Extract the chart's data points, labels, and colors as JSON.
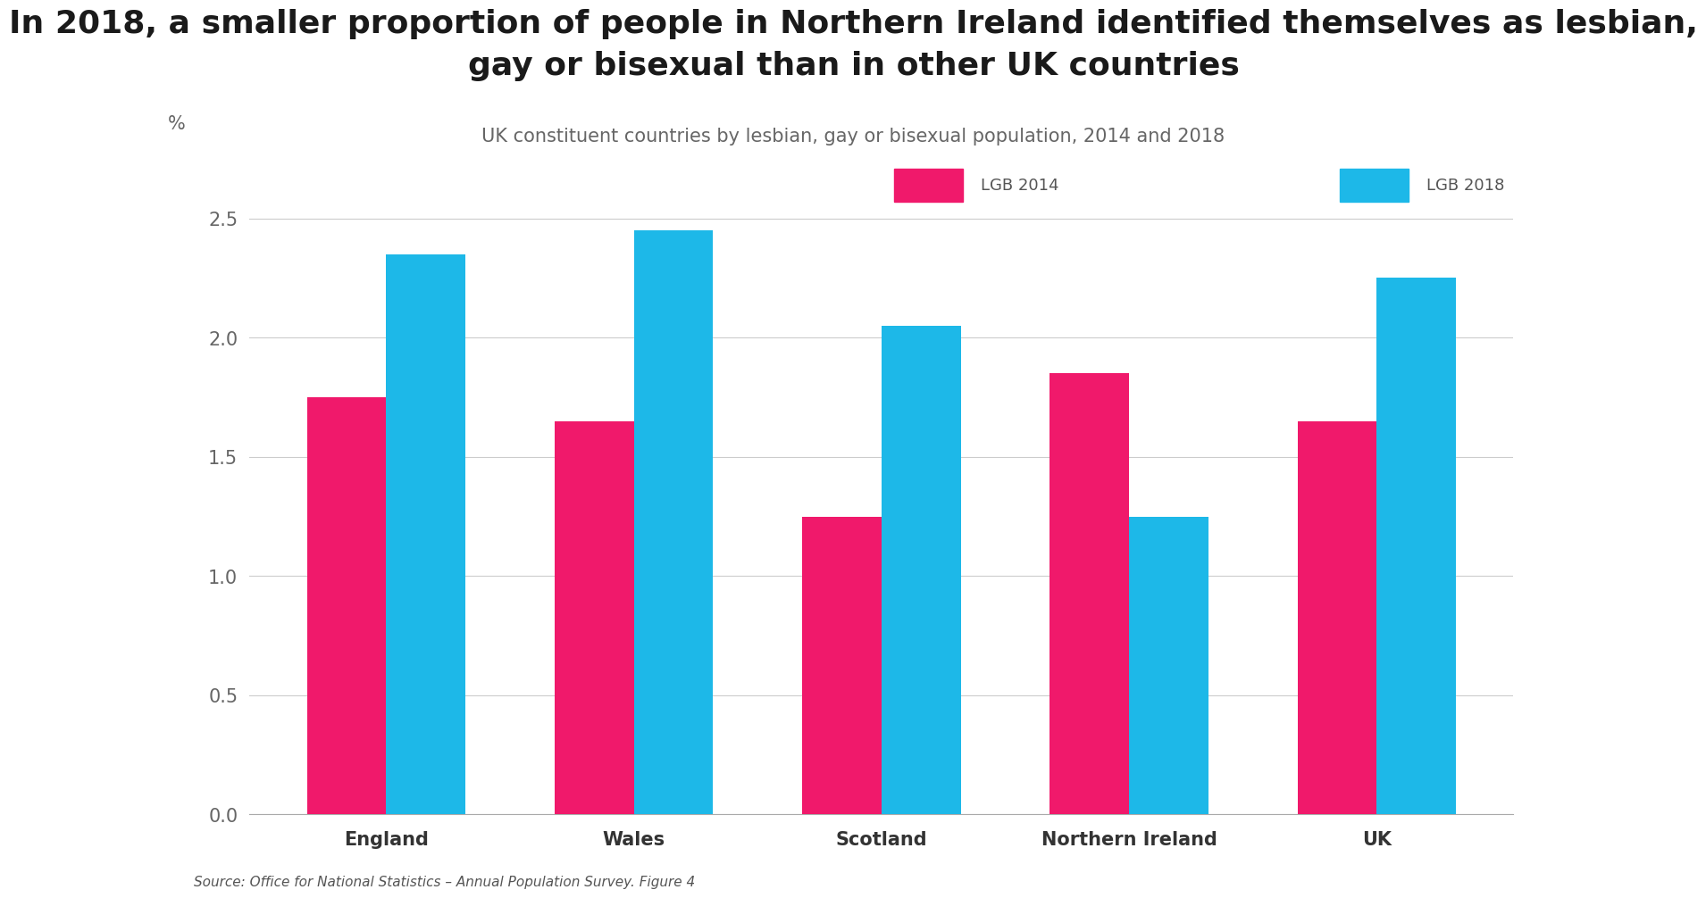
{
  "title": "In 2018, a smaller proportion of people in Northern Ireland identified themselves as lesbian,\ngay or bisexual than in other UK countries",
  "subtitle": "UK constituent countries by lesbian, gay or bisexual population, 2014 and 2018",
  "ylabel": "%",
  "source": "Source: Office for National Statistics – Annual Population Survey. Figure 4",
  "categories": [
    "England",
    "Wales",
    "Scotland",
    "Northern Ireland",
    "UK"
  ],
  "lgb2014": [
    1.75,
    1.65,
    1.25,
    1.85,
    1.65
  ],
  "lgb2018": [
    2.35,
    2.45,
    2.05,
    1.25,
    2.25
  ],
  "color_2014": "#F0196B",
  "color_2018": "#1DB8E8",
  "ylim": [
    0,
    2.75
  ],
  "yticks": [
    0.0,
    0.5,
    1.0,
    1.5,
    2.0,
    2.5
  ],
  "legend_label_2014": "LGB 2014",
  "legend_label_2018": "LGB 2018",
  "bar_width": 0.32,
  "background_color": "#FFFFFF",
  "title_fontsize": 26,
  "subtitle_fontsize": 15,
  "tick_fontsize": 15,
  "label_fontsize": 15,
  "source_fontsize": 11,
  "legend_fontsize": 13
}
